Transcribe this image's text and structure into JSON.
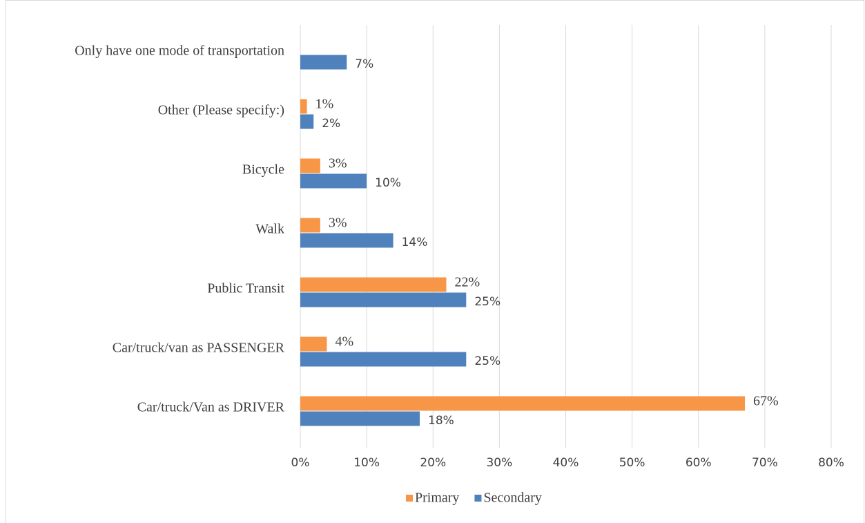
{
  "chart_data": {
    "type": "bar",
    "orientation": "horizontal",
    "categories": [
      "Car/truck/Van as DRIVER",
      "Car/truck/van as PASSENGER",
      "Public Transit",
      "Walk",
      "Bicycle",
      "Other (Please specify:)",
      "Only have one mode of transportation"
    ],
    "series": [
      {
        "name": "Primary",
        "color": "#f79646",
        "values": [
          67,
          4,
          22,
          3,
          3,
          1,
          null
        ],
        "value_labels": [
          "67%",
          "4%",
          "22%",
          "3%",
          "3%",
          "1%",
          null
        ]
      },
      {
        "name": "Secondary",
        "color": "#4f81bd",
        "values": [
          18,
          25,
          25,
          14,
          10,
          2,
          7
        ],
        "value_labels": [
          "18%",
          "25%",
          "25%",
          "14%",
          "10%",
          "2%",
          "7%"
        ]
      }
    ],
    "xlim": [
      0,
      80
    ],
    "xticks": [
      {
        "value": 0,
        "label": "0%"
      },
      {
        "value": 10,
        "label": "10%"
      },
      {
        "value": 20,
        "label": "20%"
      },
      {
        "value": 30,
        "label": "30%"
      },
      {
        "value": 40,
        "label": "40%"
      },
      {
        "value": 50,
        "label": "50%"
      },
      {
        "value": 60,
        "label": "60%"
      },
      {
        "value": 70,
        "label": "70%"
      },
      {
        "value": 80,
        "label": "80%"
      }
    ],
    "grid": true,
    "legend": "bottom"
  }
}
